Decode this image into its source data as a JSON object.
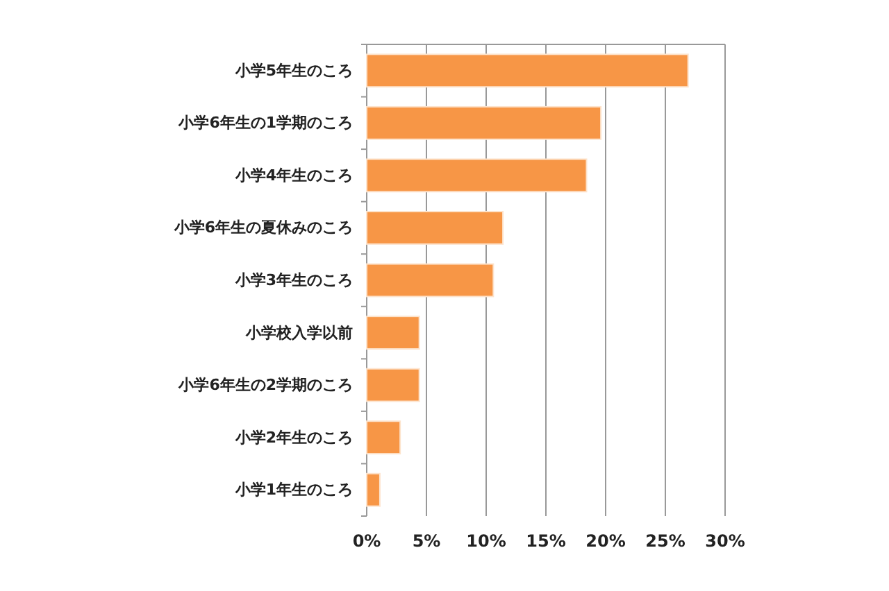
{
  "chart_data": {
    "type": "bar",
    "orientation": "horizontal",
    "categories": [
      "小学5年生のころ",
      "小学6年生の1学期のころ",
      "小学4年生のころ",
      "小学6年生の夏休みのころ",
      "小学3年生のころ",
      "小学校入学以前",
      "小学6年生の2学期のころ",
      "小学2年生のころ",
      "小学1年生のころ"
    ],
    "values": [
      26.9,
      19.6,
      18.4,
      11.4,
      10.6,
      4.4,
      4.4,
      2.8,
      1.1
    ],
    "color": "#f79646",
    "xlim": [
      0,
      30
    ],
    "xticks": [
      {
        "value": 0,
        "label": "0%"
      },
      {
        "value": 5,
        "label": "5%"
      },
      {
        "value": 10,
        "label": "10%"
      },
      {
        "value": 15,
        "label": "15%"
      },
      {
        "value": 20,
        "label": "20%"
      },
      {
        "value": 25,
        "label": "25%"
      },
      {
        "value": 30,
        "label": "30%"
      }
    ],
    "grid": "x"
  }
}
